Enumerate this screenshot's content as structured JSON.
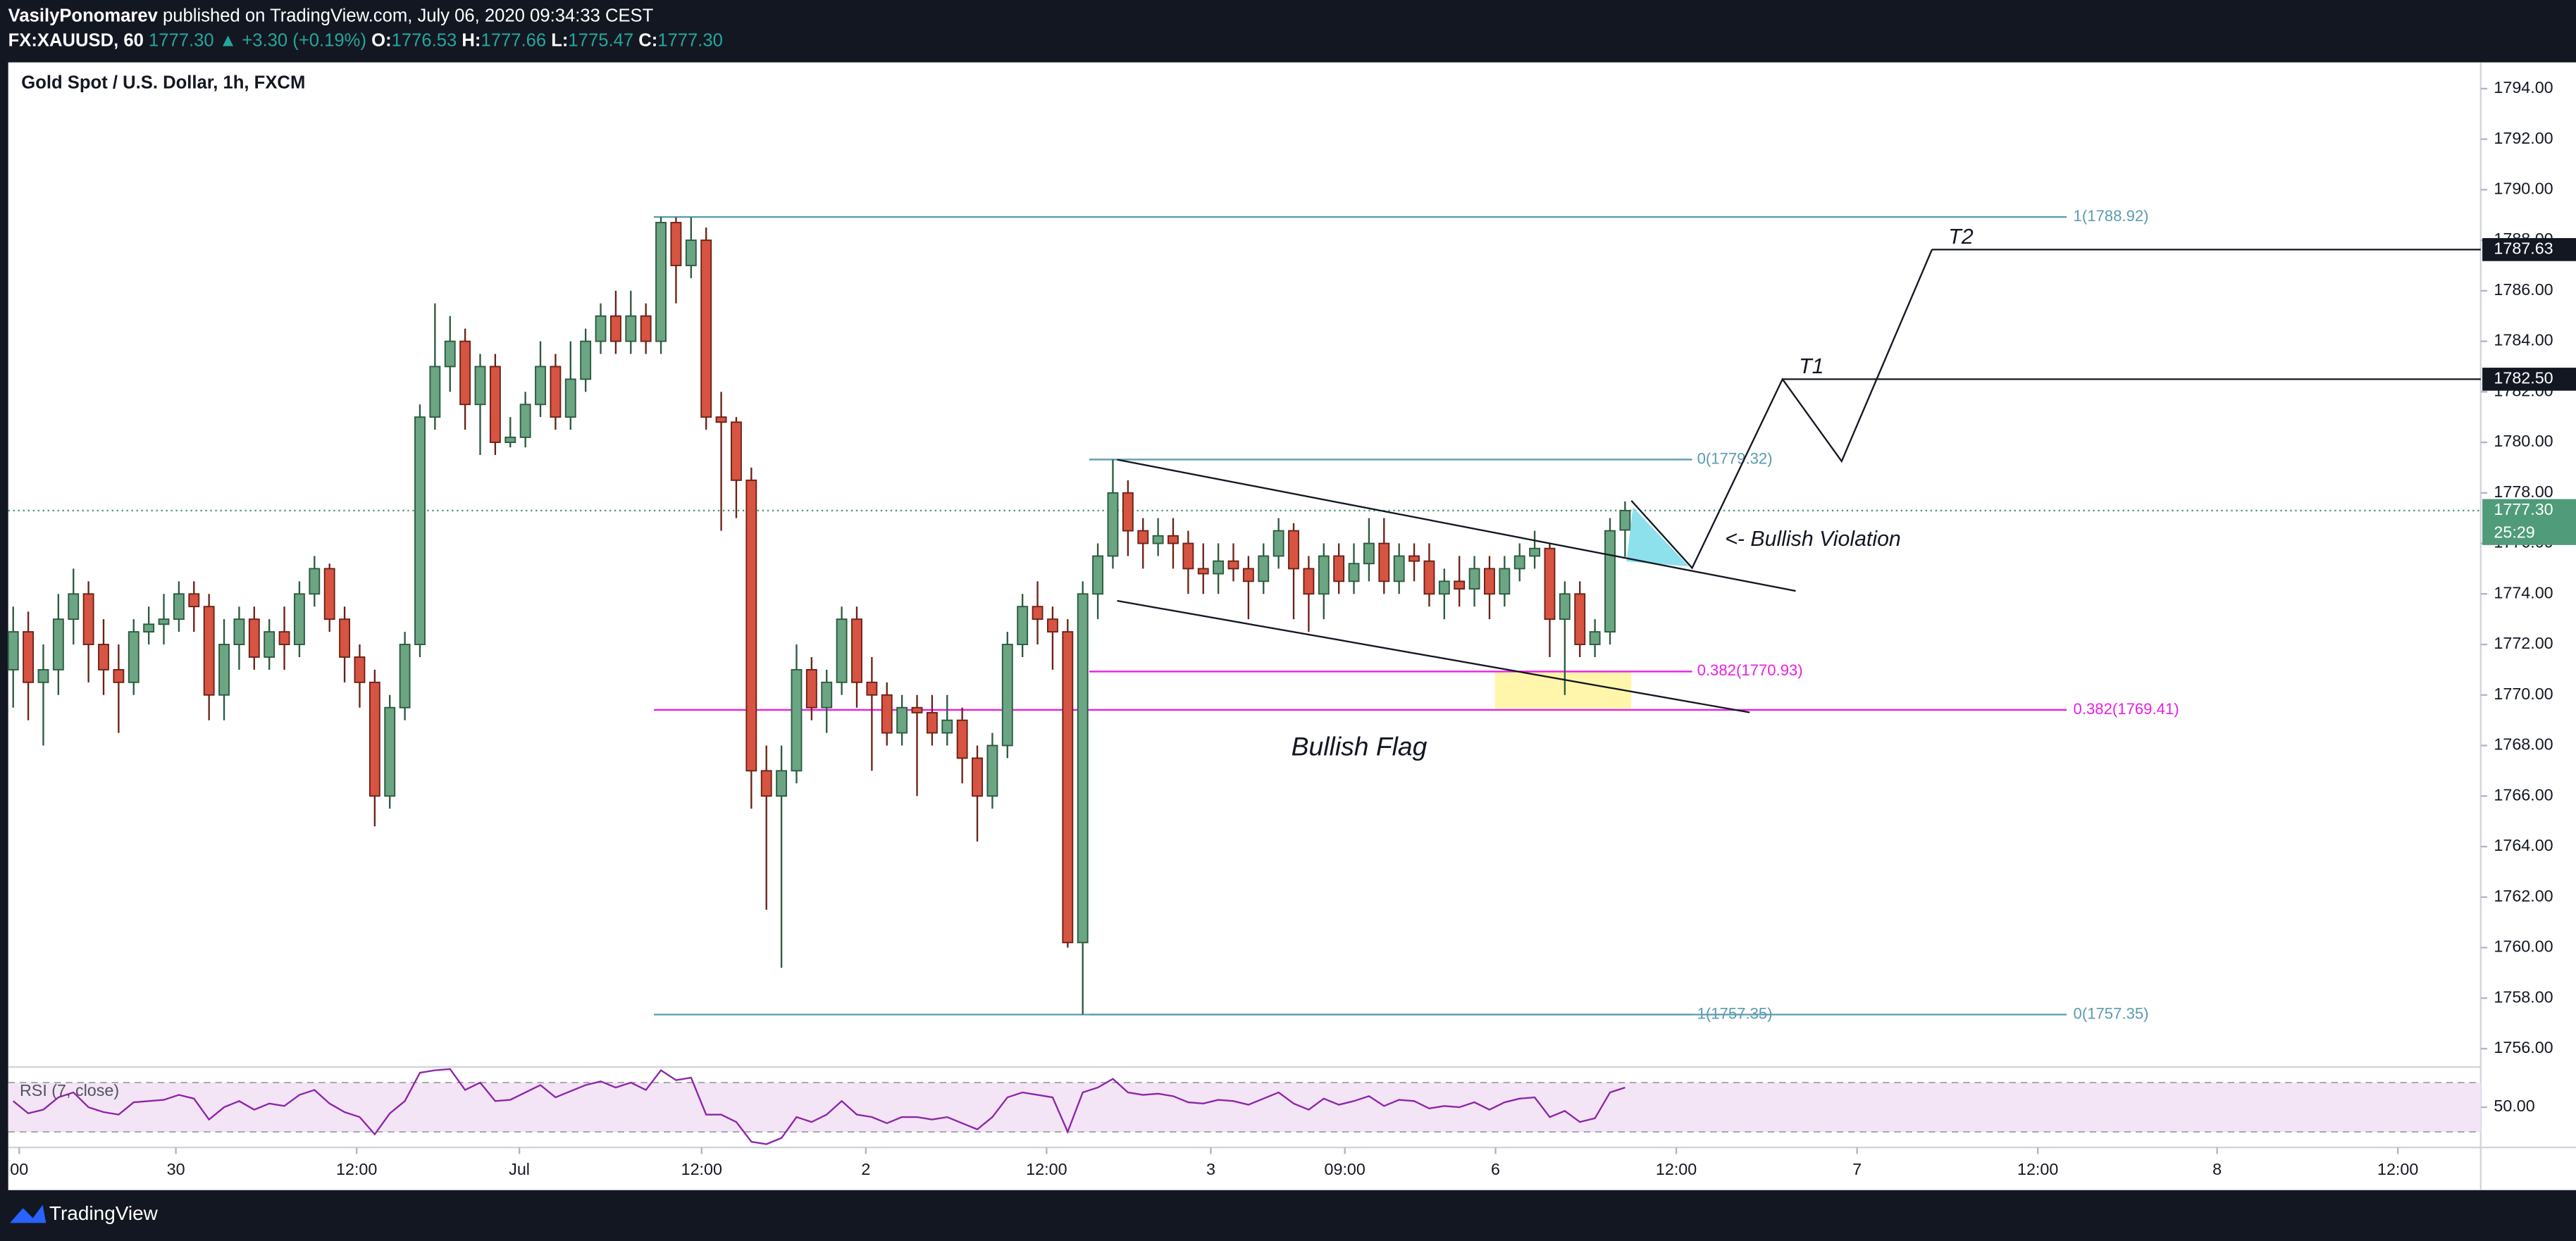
{
  "header": {
    "author": "VasilyPonomarev",
    "published": "published on TradingView.com, July 06, 2020 09:34:33 CEST",
    "symbol": "FX:XAUUSD, 60",
    "price": "1777.30",
    "change": "▲ +3.30 (+0.19%)",
    "ohlc": [
      {
        "key": "O:",
        "value": "1776.53"
      },
      {
        "key": "H:",
        "value": "1777.66"
      },
      {
        "key": "L:",
        "value": "1775.47"
      },
      {
        "key": "C:",
        "value": "1777.30"
      }
    ]
  },
  "footer": "TradingView",
  "chart_data": {
    "type": "candlestick",
    "title": "Gold Spot / U.S. Dollar, 1h, FXCM",
    "open": [
      1771,
      1772.5,
      1770.5,
      1771,
      1773,
      1774,
      1772,
      1771,
      1770.5,
      1772.5,
      1772.8,
      1773,
      1774,
      1773.5,
      1770,
      1772,
      1773,
      1771.5,
      1772.5,
      1772,
      1774,
      1775,
      1773,
      1771.5,
      1770.5,
      1766,
      1769.5,
      1772,
      1781,
      1783,
      1784,
      1781.5,
      1783,
      1780,
      1780.2,
      1781.5,
      1783,
      1781,
      1782.5,
      1784,
      1785,
      1784,
      1785,
      1784,
      1788.7,
      1787,
      1788,
      1781,
      1780.8,
      1778.5,
      1767,
      1766,
      1767,
      1771,
      1769.5,
      1770.5,
      1773,
      1770.5,
      1770,
      1768.5,
      1769.5,
      1769.3,
      1768.5,
      1769,
      1767.5,
      1766,
      1768,
      1772,
      1773.5,
      1773,
      1772.5,
      1760.2,
      1774,
      1775.5,
      1778,
      1776.5,
      1776,
      1776.3,
      1776,
      1775,
      1774.8,
      1775.3,
      1775,
      1774.5,
      1775.5,
      1776.5,
      1775,
      1774,
      1775.5,
      1774.5,
      1775.2,
      1776,
      1774.5,
      1775.5,
      1775.3,
      1774,
      1774.5,
      1774.2,
      1775,
      1774,
      1775,
      1775.5,
      1775.8,
      1773,
      1774,
      1772,
      1772.5,
      1776.53
    ],
    "high": [
      1773.5,
      1773.3,
      1772,
      1774,
      1775,
      1774.5,
      1773,
      1772,
      1773,
      1773.5,
      1774,
      1774.5,
      1774.5,
      1774,
      1773,
      1773.5,
      1773.5,
      1773,
      1773.5,
      1774.5,
      1775.5,
      1775.2,
      1773.5,
      1772,
      1771,
      1770,
      1772.5,
      1781.5,
      1785.5,
      1785,
      1784.5,
      1783.5,
      1783.5,
      1781,
      1782,
      1784,
      1783.5,
      1784,
      1784.5,
      1785.5,
      1786,
      1786,
      1785.5,
      1788.92,
      1788.9,
      1788.9,
      1788.5,
      1782,
      1781,
      1779,
      1768,
      1768,
      1772,
      1771.5,
      1771,
      1773.5,
      1773.5,
      1771.5,
      1770.5,
      1770,
      1770,
      1770,
      1770,
      1769.5,
      1768,
      1768.5,
      1772.5,
      1774,
      1774.5,
      1773.5,
      1773,
      1774.5,
      1776,
      1779.32,
      1778.5,
      1777,
      1777,
      1777,
      1776.5,
      1776,
      1776,
      1776,
      1775.5,
      1776,
      1777,
      1776.8,
      1775.5,
      1776,
      1776,
      1776,
      1777,
      1777,
      1776,
      1776,
      1776,
      1775,
      1775.5,
      1775.5,
      1775.5,
      1775.5,
      1776,
      1776.5,
      1776,
      1774.5,
      1774.5,
      1773,
      1777,
      1777.66
    ],
    "low": [
      1769.5,
      1769,
      1768,
      1770,
      1772,
      1770.5,
      1770,
      1768.5,
      1770,
      1772,
      1772,
      1772.5,
      1772.5,
      1769,
      1769,
      1771,
      1771,
      1771,
      1771,
      1771.5,
      1773.5,
      1772.5,
      1770.5,
      1769.5,
      1764.8,
      1765.5,
      1769,
      1771.5,
      1780.5,
      1782,
      1780.5,
      1779.5,
      1779.5,
      1779.8,
      1779.8,
      1781,
      1780.5,
      1780.5,
      1782,
      1783.5,
      1783.5,
      1783.5,
      1783.5,
      1783.5,
      1785.5,
      1786.5,
      1780.5,
      1776.5,
      1777,
      1765.5,
      1761.5,
      1759.2,
      1766.5,
      1769,
      1768.5,
      1770,
      1769.5,
      1767,
      1768,
      1768,
      1766,
      1768,
      1768,
      1766.5,
      1764.2,
      1765.5,
      1767.5,
      1771.5,
      1772,
      1771,
      1760,
      1757.35,
      1773,
      1775,
      1775.5,
      1775,
      1775.5,
      1775,
      1774,
      1774,
      1774,
      1774.5,
      1773,
      1774,
      1775,
      1773,
      1772.5,
      1773,
      1774,
      1774,
      1774.5,
      1774,
      1774,
      1774.5,
      1773.5,
      1773,
      1773.5,
      1773.5,
      1773,
      1773.5,
      1774.5,
      1775,
      1771.5,
      1770,
      1771.5,
      1771.5,
      1772,
      1775.47
    ],
    "close": [
      1772.5,
      1770.5,
      1771,
      1773,
      1774,
      1772,
      1771,
      1770.5,
      1772.5,
      1772.8,
      1773,
      1774,
      1773.5,
      1770,
      1772,
      1773,
      1771.5,
      1772.5,
      1772,
      1774,
      1775,
      1773,
      1771.5,
      1770.5,
      1766,
      1769.5,
      1772,
      1781,
      1783,
      1784,
      1781.5,
      1783,
      1780,
      1780.2,
      1781.5,
      1783,
      1781,
      1782.5,
      1784,
      1785,
      1784,
      1785,
      1784,
      1788.7,
      1787,
      1788,
      1781,
      1780.8,
      1778.5,
      1767,
      1766,
      1767,
      1771,
      1769.5,
      1770.5,
      1773,
      1770.5,
      1770,
      1768.5,
      1769.5,
      1769.3,
      1768.5,
      1769,
      1767.5,
      1766,
      1768,
      1772,
      1773.5,
      1773,
      1772.5,
      1760.2,
      1774,
      1775.5,
      1778,
      1776.5,
      1776,
      1776.3,
      1776,
      1775,
      1774.8,
      1775.3,
      1775,
      1774.5,
      1775.5,
      1776.5,
      1775,
      1774,
      1775.5,
      1774.5,
      1775.2,
      1776,
      1774.5,
      1775.5,
      1775.3,
      1774,
      1774.5,
      1774.2,
      1775,
      1774,
      1775,
      1775.5,
      1775.8,
      1773,
      1774,
      1772,
      1772.5,
      1776.5,
      1777.3
    ],
    "up_color": "#6ba583",
    "down_color": "#d75442",
    "xlim": [
      -0.33,
      163.8
    ],
    "xticks": [
      {
        "value": 0.4,
        "label": "00"
      },
      {
        "value": 10.8,
        "label": "30"
      },
      {
        "value": 22.8,
        "label": "12:00"
      },
      {
        "value": 33.6,
        "label": "Jul"
      },
      {
        "value": 45.7,
        "label": "12:00"
      },
      {
        "value": 56.6,
        "label": "2"
      },
      {
        "value": 68.6,
        "label": "12:00"
      },
      {
        "value": 79.5,
        "label": "3"
      },
      {
        "value": 88.4,
        "label": "09:00"
      },
      {
        "value": 98.4,
        "label": "6"
      },
      {
        "value": 110.4,
        "label": "12:00"
      },
      {
        "value": 122.4,
        "label": "7"
      },
      {
        "value": 134.4,
        "label": "12:00"
      },
      {
        "value": 146.3,
        "label": "8"
      },
      {
        "value": 158.3,
        "label": "12:00"
      }
    ],
    "ylim": [
      1755.47,
      1795.04
    ],
    "yticks": [
      {
        "value": 1756,
        "label": "1756.00"
      },
      {
        "value": 1758,
        "label": "1758.00"
      },
      {
        "value": 1760,
        "label": "1760.00"
      },
      {
        "value": 1762,
        "label": "1762.00"
      },
      {
        "value": 1764,
        "label": "1764.00"
      },
      {
        "value": 1766,
        "label": "1766.00"
      },
      {
        "value": 1768,
        "label": "1768.00"
      },
      {
        "value": 1770,
        "label": "1770.00"
      },
      {
        "value": 1772,
        "label": "1772.00"
      },
      {
        "value": 1774,
        "label": "1774.00"
      },
      {
        "value": 1776,
        "label": "1776.00"
      },
      {
        "value": 1778,
        "label": "1778.00"
      },
      {
        "value": 1780,
        "label": "1780.00"
      },
      {
        "value": 1782,
        "label": "1782.00"
      },
      {
        "value": 1784,
        "label": "1784.00"
      },
      {
        "value": 1786,
        "label": "1786.00"
      },
      {
        "value": 1788,
        "label": "1788.00"
      },
      {
        "value": 1790,
        "label": "1790.00"
      },
      {
        "value": 1792,
        "label": "1792.00"
      },
      {
        "value": 1794,
        "label": "1794.00"
      }
    ],
    "fib_levels": [
      {
        "value": 1788.92,
        "label": "1(1788.92)",
        "color": "#5b9bb0"
      },
      {
        "value": 1779.32,
        "label": "0(1779.32)",
        "color": "#5b9bb0"
      },
      {
        "value": 1757.35,
        "label": "1(1757.35)",
        "color": "#5b9bb0"
      },
      {
        "value": 1757.35,
        "label": "0(1757.35)",
        "color": "#5b9bb0"
      },
      {
        "value": 1770.93,
        "label": "0.382(1770.93)",
        "color": "#e91ee6"
      },
      {
        "value": 1769.41,
        "label": "0.382(1769.41)",
        "color": "#e91ee6"
      }
    ],
    "targets": [
      {
        "name": "T1",
        "value": 1782.5,
        "label": "1782.50"
      },
      {
        "name": "T2",
        "value": 1787.63,
        "label": "1787.63"
      }
    ],
    "annotations": [
      "<- Bullish Violation",
      "Bullish Flag"
    ],
    "last_price": {
      "value": 1777.3,
      "label": "1777.30"
    },
    "countdown": "25:29",
    "rsi": {
      "title": "RSI (7, close)",
      "color": "#8e24aa",
      "ylim": [
        20,
        80
      ],
      "yticks": [
        {
          "value": 50,
          "label": "50.00"
        }
      ],
      "bands": [
        30,
        70
      ],
      "values": [
        55,
        45,
        48,
        58,
        62,
        50,
        46,
        44,
        54,
        55,
        56,
        60,
        57,
        40,
        50,
        55,
        48,
        53,
        51,
        60,
        64,
        53,
        46,
        42,
        28,
        45,
        55,
        78,
        80,
        81,
        64,
        70,
        55,
        56,
        62,
        68,
        58,
        63,
        68,
        71,
        66,
        70,
        64,
        80,
        72,
        74,
        44,
        44,
        38,
        22,
        20,
        25,
        42,
        38,
        44,
        55,
        44,
        42,
        37,
        42,
        42,
        40,
        42,
        37,
        32,
        42,
        58,
        62,
        60,
        58,
        30,
        62,
        66,
        73,
        62,
        60,
        61,
        59,
        54,
        53,
        56,
        55,
        52,
        57,
        62,
        53,
        48,
        57,
        52,
        55,
        59,
        51,
        56,
        55,
        49,
        51,
        50,
        54,
        48,
        54,
        57,
        58,
        42,
        47,
        38,
        41,
        62,
        66
      ]
    }
  }
}
